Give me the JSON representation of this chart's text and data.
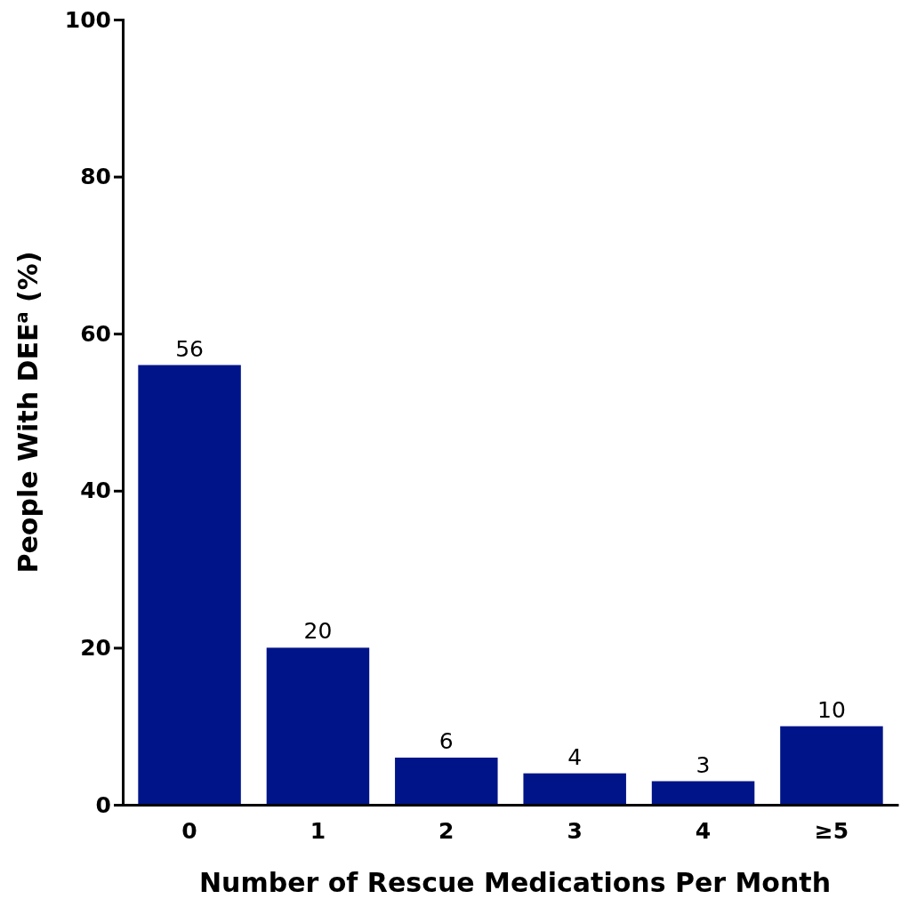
{
  "chart_data": {
    "type": "bar",
    "xlabel": "Number of Rescue Medications Per Month",
    "ylabel": "People With DEE$^{a}$ (%)",
    "categories": [
      "0",
      "1",
      "2",
      "3",
      "4",
      "≥5"
    ],
    "values": [
      56,
      20,
      6,
      4,
      3,
      10
    ],
    "color": "#001489",
    "ylim": [
      0,
      100
    ],
    "yticks": [
      0,
      20,
      40,
      60,
      80,
      100
    ],
    "grid": false,
    "data_labels": true
  }
}
